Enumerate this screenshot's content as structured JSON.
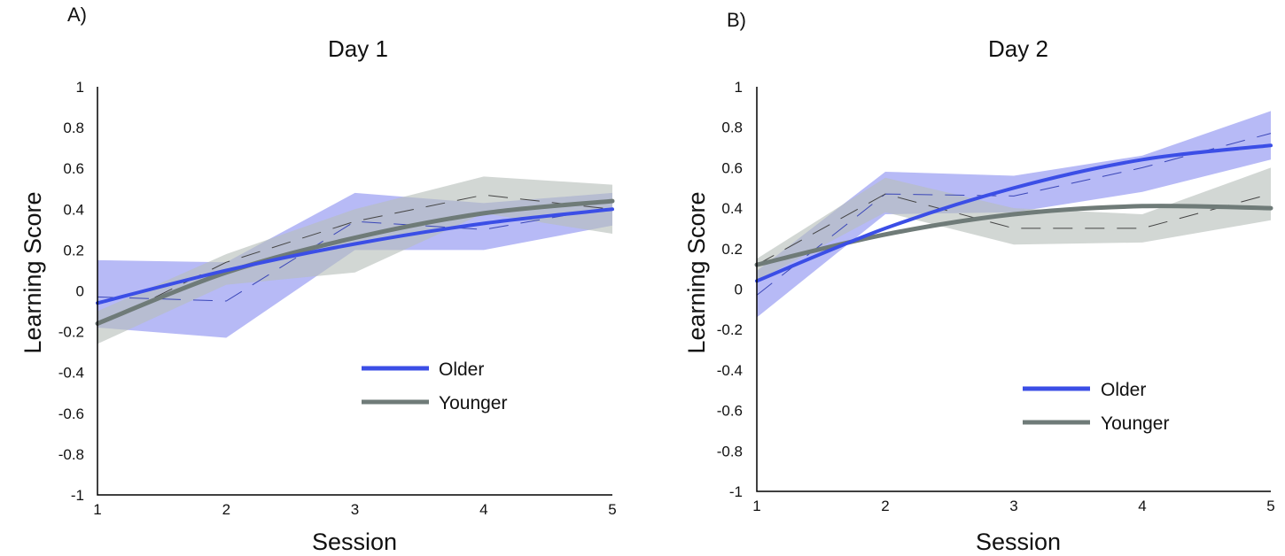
{
  "colors": {
    "older": "#3b4ee6",
    "older_band": "#8b8ff0",
    "younger": "#6f7b78",
    "younger_band": "#b7bfb9",
    "raw": "#444444"
  },
  "chart_data": [
    {
      "type": "line",
      "panel_label": "A)",
      "title": "Day 1",
      "xlabel": "Session",
      "ylabel": "Learning Score",
      "x": [
        1,
        2,
        3,
        4,
        5
      ],
      "xticks": [
        "1",
        "2",
        "3",
        "4",
        "5"
      ],
      "yticks": [
        "-1",
        "-0.8",
        "-0.6",
        "-0.4",
        "-0.2",
        "0",
        "0.2",
        "0.4",
        "0.6",
        "0.8",
        "1"
      ],
      "xlim": [
        1,
        5
      ],
      "ylim": [
        -1,
        1
      ],
      "grid": false,
      "legend": "center-right",
      "series": [
        {
          "name": "Older",
          "fit": [
            -0.06,
            0.1,
            0.23,
            0.33,
            0.4
          ],
          "observed": [
            -0.03,
            -0.05,
            0.34,
            0.3,
            0.41
          ],
          "band_upper": [
            0.15,
            0.14,
            0.48,
            0.43,
            0.48
          ],
          "band_lower": [
            -0.18,
            -0.23,
            0.2,
            0.2,
            0.32
          ]
        },
        {
          "name": "Younger",
          "fit": [
            -0.16,
            0.09,
            0.26,
            0.38,
            0.44
          ],
          "observed": [
            -0.17,
            0.14,
            0.34,
            0.47,
            0.4
          ],
          "band_upper": [
            -0.1,
            0.18,
            0.4,
            0.56,
            0.52
          ],
          "band_lower": [
            -0.26,
            0.03,
            0.09,
            0.38,
            0.28
          ]
        }
      ]
    },
    {
      "type": "line",
      "panel_label": "B)",
      "title": "Day 2",
      "xlabel": "Session",
      "ylabel": "Learning Score",
      "x": [
        1,
        2,
        3,
        4,
        5
      ],
      "xticks": [
        "1",
        "2",
        "3",
        "4",
        "5"
      ],
      "yticks": [
        "-1",
        "-0.8",
        "-0.6",
        "-0.4",
        "-0.2",
        "0",
        "0.2",
        "0.4",
        "0.6",
        "0.8",
        "1"
      ],
      "xlim": [
        1,
        5
      ],
      "ylim": [
        -1,
        1
      ],
      "grid": false,
      "legend": "lower-right",
      "series": [
        {
          "name": "Older",
          "fit": [
            0.04,
            0.3,
            0.5,
            0.64,
            0.71
          ],
          "observed": [
            -0.03,
            0.47,
            0.46,
            0.6,
            0.77
          ],
          "band_upper": [
            0.09,
            0.58,
            0.56,
            0.66,
            0.88
          ],
          "band_lower": [
            -0.14,
            0.37,
            0.38,
            0.48,
            0.64
          ]
        },
        {
          "name": "Younger",
          "fit": [
            0.12,
            0.27,
            0.37,
            0.41,
            0.4
          ],
          "observed": [
            0.12,
            0.47,
            0.3,
            0.3,
            0.47
          ],
          "band_upper": [
            0.15,
            0.55,
            0.4,
            0.37,
            0.6
          ],
          "band_lower": [
            0.04,
            0.38,
            0.22,
            0.23,
            0.34
          ]
        }
      ]
    }
  ]
}
